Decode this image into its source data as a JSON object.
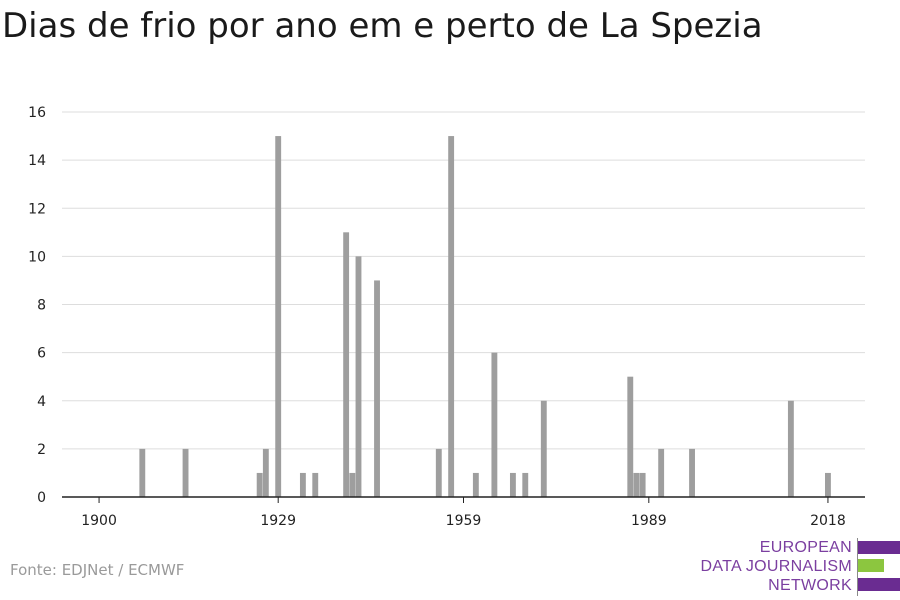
{
  "title": "Dias de frio por ano em e perto de La Spezia",
  "source": "Fonte: EDJNet / ECMWF",
  "logo": {
    "lines": [
      "EUROPEAN",
      "DATA JOURNALISM",
      "NETWORK"
    ]
  },
  "colors": {
    "bar": "#9e9e9e",
    "grid": "#dddddd",
    "axis": "#222222",
    "logo_purple": "#6a2c91",
    "logo_green": "#8cc63f"
  },
  "chart_data": {
    "type": "bar",
    "title": "Dias de frio por ano em e perto de La Spezia",
    "xlabel": "",
    "ylabel": "",
    "xlim": [
      1894,
      2024
    ],
    "ylim": [
      0,
      16
    ],
    "x_ticks": [
      1900,
      1929,
      1959,
      1989,
      2018
    ],
    "y_ticks": [
      0,
      2,
      4,
      6,
      8,
      10,
      12,
      14,
      16
    ],
    "grid": true,
    "x": [
      1907,
      1914,
      1926,
      1927,
      1929,
      1933,
      1935,
      1940,
      1941,
      1942,
      1945,
      1955,
      1957,
      1961,
      1964,
      1967,
      1969,
      1972,
      1986,
      1987,
      1988,
      1991,
      1996,
      2012,
      2018
    ],
    "values": [
      2,
      2,
      1,
      2,
      15,
      1,
      1,
      11,
      1,
      10,
      9,
      2,
      15,
      1,
      6,
      1,
      1,
      4,
      5,
      1,
      1,
      2,
      2,
      4,
      1
    ]
  }
}
